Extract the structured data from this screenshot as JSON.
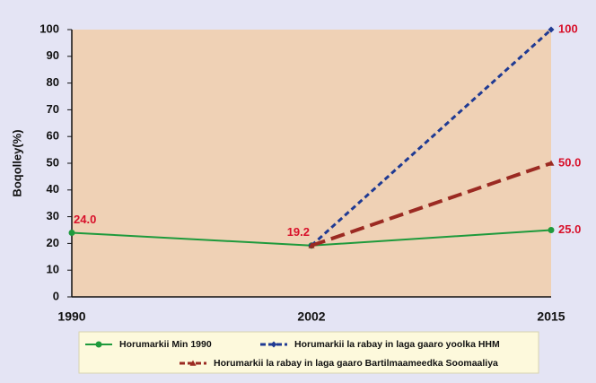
{
  "chart_data": {
    "type": "line",
    "y_label": "Boqolley(%)",
    "categories": [
      "1990",
      "2002",
      "2015"
    ],
    "series": [
      {
        "name": "Horumarkii Min 1990",
        "color": "#1e9a3c",
        "marker": "circle",
        "dash": false,
        "values": [
          24.0,
          19.2,
          25.0
        ],
        "value_labels": [
          "24.0",
          "19.2",
          "25.0"
        ]
      },
      {
        "name": "Horumarkii la rabay in laga gaaro yoolka  HHM",
        "color": "#1f3a93",
        "marker": "diamond",
        "dash": true,
        "values": [
          null,
          19.2,
          100
        ],
        "value_labels": [
          null,
          null,
          "100"
        ]
      },
      {
        "name": "Horumarkii la rabay in laga gaaro Bartilmaameedka Soomaaliya",
        "color": "#9b2a22",
        "marker": "triangle",
        "dash": true,
        "values": [
          null,
          19.2,
          50.0
        ],
        "value_labels": [
          null,
          null,
          "50.0"
        ]
      }
    ],
    "ylim": [
      0,
      100
    ],
    "yticks": [
      0,
      10,
      20,
      30,
      40,
      50,
      60,
      70,
      80,
      90,
      100
    ],
    "grid": false,
    "legend": "bottom"
  }
}
